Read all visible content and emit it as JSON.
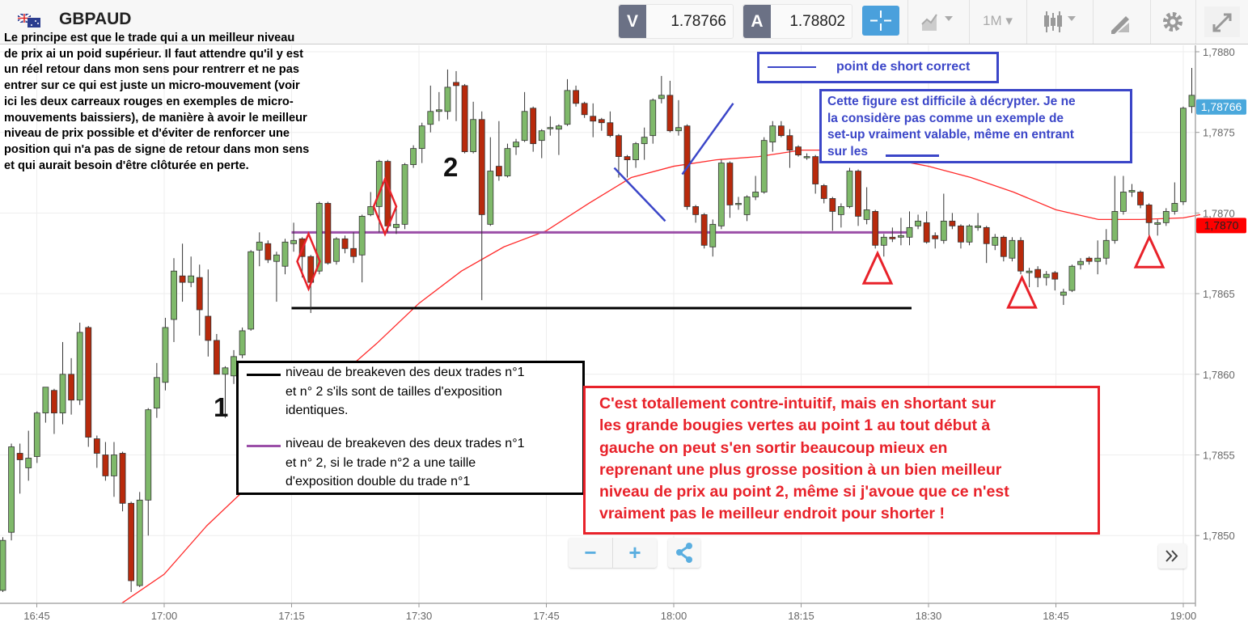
{
  "header": {
    "symbol": "GBPAUD",
    "flag_icon": "gb-au-flag-icon",
    "sell": {
      "label": "V",
      "price": "1.78766"
    },
    "buy": {
      "label": "A",
      "price": "1.78802"
    },
    "timeframe": "1M",
    "icons": [
      "crosshair-icon",
      "chart-type-icon",
      "timeframe-dropdown",
      "candles-icon",
      "draw-icon",
      "gear-icon",
      "fullscreen-icon"
    ]
  },
  "annotations": {
    "intro_lines": [
      "Le principe est que le trade qui a un meilleur niveau",
      "de prix ai un poid supérieur. Il faut attendre qu'il y est",
      "un réel retour dans mon sens pour rentrerr et ne pas",
      "entrer sur ce qui est juste un micro-mouvement (voir",
      "ici les deux carreaux rouges en exemples de micro-",
      "mouvements baissiers), de manière à avoir le meilleur",
      "niveau de prix possible et d'éviter de renforcer une",
      "position qui n'a pas de signe de retour dans mon sens",
      "et qui aurait besoin d'être clôturée en perte."
    ],
    "point1": "1",
    "point2": "2",
    "blue_legend": "point de short correct",
    "blue_box": "Cette figure est difficile à décrypter. Je ne\nla considère pas comme un exemple de\nset-up vraiment valable, même en entrant\nsur les",
    "black_legend": {
      "black_line": "niveau de breakeven des deux trades n°1\net n° 2 s'ils sont de tailles d'exposition\nidentiques.",
      "purple_line": "niveau de breakeven des deux trades n°1\net n° 2, si le trade n°2 a une taille\nd'exposition double du trade n°1"
    },
    "red_box": "C'est totallement contre-intuitif, mais en shortant sur\nles grande bougies vertes au point 1 au tout début à\ngauche on peut s'en sortir beaucoup mieux en\nreprenant une plus grosse position à un bien meilleur\nniveau de prix au point 2, même si j'avoue que ce n'est\nvraiment pas le meilleur endroit pour shorter !",
    "colors": {
      "blue": "#3b46c8",
      "red": "#e8222a",
      "purple": "#9b4fa8",
      "black": "#000000"
    }
  },
  "controls": {
    "zoom_out": "−",
    "zoom_in": "+",
    "share_icon": "share-icon",
    "scroll_icon": "double-chevron-right-icon"
  },
  "chart_data": {
    "type": "candlestick",
    "symbol": "GBPAUD",
    "interval": "1M",
    "time_range": [
      "16:41",
      "19:01"
    ],
    "ylim": [
      1.78466,
      1.78815
    ],
    "y_ticks": [
      "1,7850",
      "1,7855",
      "1,7860",
      "1,7865",
      "1,7870",
      "1,7875",
      "1,7880"
    ],
    "y_tick_values": [
      1.785,
      1.7855,
      1.786,
      1.7865,
      1.787,
      1.7875,
      1.788
    ],
    "x_ticks": [
      "16:45",
      "17:00",
      "17:15",
      "17:30",
      "17:45",
      "18:00",
      "18:15",
      "18:30",
      "18:45",
      "19:00"
    ],
    "grid": true,
    "last_price_label": "1,78766",
    "ma_price_label": "1,7870",
    "colors": {
      "up": "#7fb96a",
      "down": "#b82a0c",
      "ma": "#ff2a2a",
      "last_price": "#4aa8dc",
      "ma_label": "#ff0000"
    },
    "candle_fields": [
      "open",
      "high",
      "low",
      "close"
    ],
    "candles": [
      [
        1.78466,
        1.78499,
        1.78465,
        1.78497
      ],
      [
        1.78502,
        1.78557,
        1.78497,
        1.78555
      ],
      [
        1.78551,
        1.78557,
        1.78526,
        1.78547
      ],
      [
        1.78542,
        1.78565,
        1.78534,
        1.78548
      ],
      [
        1.78549,
        1.78577,
        1.78545,
        1.78576
      ],
      [
        1.78576,
        1.78592,
        1.7857,
        1.78592
      ],
      [
        1.7859,
        1.78591,
        1.78563,
        1.78576
      ],
      [
        1.78576,
        1.7862,
        1.78569,
        1.786
      ],
      [
        1.786,
        1.7861,
        1.78575,
        1.78584
      ],
      [
        1.78584,
        1.78632,
        1.78581,
        1.78626
      ],
      [
        1.78629,
        1.7863,
        1.78555,
        1.78561
      ],
      [
        1.7856,
        1.78562,
        1.78542,
        1.78551
      ],
      [
        1.7855,
        1.78558,
        1.78534,
        1.78537
      ],
      [
        1.78537,
        1.78558,
        1.78524,
        1.7855
      ],
      [
        1.78551,
        1.78552,
        1.78515,
        1.7852
      ],
      [
        1.7852,
        1.78521,
        1.78465,
        1.78472
      ],
      [
        1.78469,
        1.78527,
        1.78468,
        1.78522
      ],
      [
        1.78522,
        1.78579,
        1.785,
        1.78578
      ],
      [
        1.78579,
        1.78607,
        1.78573,
        1.78598
      ],
      [
        1.78595,
        1.78635,
        1.7859,
        1.78629
      ],
      [
        1.78634,
        1.78672,
        1.7862,
        1.78664
      ],
      [
        1.78661,
        1.78681,
        1.78645,
        1.78657
      ],
      [
        1.78657,
        1.78673,
        1.78654,
        1.78661
      ],
      [
        1.7866,
        1.78668,
        1.78624,
        1.7864
      ],
      [
        1.78636,
        1.78665,
        1.78611,
        1.78621
      ],
      [
        1.78621,
        1.78625,
        1.786,
        1.786
      ],
      [
        1.786,
        1.78605,
        1.78573,
        1.78604
      ],
      [
        1.78599,
        1.78615,
        1.78594,
        1.78611
      ],
      [
        1.78612,
        1.78629,
        1.7861,
        1.78627
      ],
      [
        1.78628,
        1.78677,
        1.78627,
        1.78676
      ],
      [
        1.78677,
        1.78688,
        1.78667,
        1.78682
      ],
      [
        1.78681,
        1.78683,
        1.78669,
        1.78671
      ],
      [
        1.7867,
        1.78676,
        1.78645,
        1.78674
      ],
      [
        1.78667,
        1.78684,
        1.78662,
        1.78682
      ],
      [
        1.78681,
        1.78694,
        1.78676,
        1.78683
      ],
      [
        1.78684,
        1.78685,
        1.7866,
        1.78673
      ],
      [
        1.78673,
        1.78674,
        1.78638,
        1.78657
      ],
      [
        1.78664,
        1.78707,
        1.78662,
        1.78706
      ],
      [
        1.78706,
        1.78707,
        1.78668,
        1.78669
      ],
      [
        1.7867,
        1.78685,
        1.78668,
        1.78684
      ],
      [
        1.78684,
        1.78686,
        1.78675,
        1.78678
      ],
      [
        1.78678,
        1.78688,
        1.78669,
        1.78673
      ],
      [
        1.78674,
        1.78699,
        1.78657,
        1.78698
      ],
      [
        1.78699,
        1.78713,
        1.78698,
        1.78704
      ],
      [
        1.78704,
        1.78733,
        1.78688,
        1.78732
      ],
      [
        1.78732,
        1.78733,
        1.78688,
        1.78692
      ],
      [
        1.78691,
        1.78705,
        1.78687,
        1.78693
      ],
      [
        1.78693,
        1.78731,
        1.7869,
        1.7873
      ],
      [
        1.7873,
        1.78742,
        1.78728,
        1.7874
      ],
      [
        1.7874,
        1.78756,
        1.78731,
        1.78754
      ],
      [
        1.78755,
        1.78779,
        1.7875,
        1.78763
      ],
      [
        1.78763,
        1.78775,
        1.78757,
        1.78764
      ],
      [
        1.78763,
        1.78789,
        1.78758,
        1.78778
      ],
      [
        1.78781,
        1.78788,
        1.78757,
        1.78779
      ],
      [
        1.78779,
        1.7878,
        1.78737,
        1.78738
      ],
      [
        1.78738,
        1.78769,
        1.78737,
        1.78758
      ],
      [
        1.78758,
        1.78763,
        1.78646,
        1.78699
      ],
      [
        1.78693,
        1.78747,
        1.78692,
        1.78726
      ],
      [
        1.78729,
        1.78757,
        1.7872,
        1.78723
      ],
      [
        1.78723,
        1.78743,
        1.78722,
        1.7874
      ],
      [
        1.78741,
        1.78746,
        1.78736,
        1.78744
      ],
      [
        1.78745,
        1.78775,
        1.78744,
        1.78763
      ],
      [
        1.78765,
        1.78766,
        1.78738,
        1.78743
      ],
      [
        1.78745,
        1.78752,
        1.78734,
        1.78751
      ],
      [
        1.78753,
        1.7876,
        1.78748,
        1.78753
      ],
      [
        1.78752,
        1.78755,
        1.78736,
        1.78754
      ],
      [
        1.78755,
        1.78783,
        1.78754,
        1.78776
      ],
      [
        1.78776,
        1.78779,
        1.78766,
        1.78768
      ],
      [
        1.78768,
        1.78769,
        1.78759,
        1.78761
      ],
      [
        1.7876,
        1.78768,
        1.78747,
        1.78757
      ],
      [
        1.78758,
        1.78759,
        1.78751,
        1.78756
      ],
      [
        1.78756,
        1.78763,
        1.78747,
        1.78748
      ],
      [
        1.78748,
        1.78749,
        1.78722,
        1.78735
      ],
      [
        1.78735,
        1.78736,
        1.78722,
        1.78733
      ],
      [
        1.78733,
        1.78744,
        1.78728,
        1.78743
      ],
      [
        1.78743,
        1.78753,
        1.78733,
        1.78747
      ],
      [
        1.78748,
        1.78771,
        1.78743,
        1.7877
      ],
      [
        1.78771,
        1.78785,
        1.78768,
        1.78773
      ],
      [
        1.78773,
        1.78782,
        1.7875,
        1.78751
      ],
      [
        1.78751,
        1.7877,
        1.78748,
        1.78753
      ],
      [
        1.78754,
        1.78755,
        1.78702,
        1.78704
      ],
      [
        1.78704,
        1.78705,
        1.78694,
        1.78699
      ],
      [
        1.78699,
        1.787,
        1.78678,
        1.7868
      ],
      [
        1.78679,
        1.78696,
        1.78673,
        1.78693
      ],
      [
        1.78692,
        1.78733,
        1.7869,
        1.78731
      ],
      [
        1.78731,
        1.78732,
        1.78697,
        1.78705
      ],
      [
        1.78706,
        1.7871,
        1.78702,
        1.78706
      ],
      [
        1.78699,
        1.78711,
        1.78695,
        1.7871
      ],
      [
        1.7871,
        1.78723,
        1.78708,
        1.78713
      ],
      [
        1.78713,
        1.78747,
        1.78712,
        1.78745
      ],
      [
        1.78744,
        1.78757,
        1.78738,
        1.78754
      ],
      [
        1.78754,
        1.78757,
        1.78747,
        1.78748
      ],
      [
        1.78748,
        1.78752,
        1.78728,
        1.78739
      ],
      [
        1.78741,
        1.78742,
        1.78735,
        1.78736
      ],
      [
        1.78735,
        1.78737,
        1.78733,
        1.78735
      ],
      [
        1.78735,
        1.78736,
        1.78712,
        1.78718
      ],
      [
        1.78717,
        1.78718,
        1.78706,
        1.78709
      ],
      [
        1.78709,
        1.7871,
        1.78689,
        1.78701
      ],
      [
        1.78699,
        1.78706,
        1.78691,
        1.78704
      ],
      [
        1.78704,
        1.78728,
        1.78703,
        1.78726
      ],
      [
        1.78726,
        1.78727,
        1.78692,
        1.78698
      ],
      [
        1.78696,
        1.78716,
        1.78693,
        1.78702
      ],
      [
        1.78701,
        1.78702,
        1.78678,
        1.7868
      ],
      [
        1.7868,
        1.78687,
        1.78673,
        1.78685
      ],
      [
        1.78685,
        1.78691,
        1.78682,
        1.78684
      ],
      [
        1.78685,
        1.78697,
        1.7868,
        1.78686
      ],
      [
        1.78685,
        1.78701,
        1.7868,
        1.78691
      ],
      [
        1.78692,
        1.78699,
        1.7869,
        1.78695
      ],
      [
        1.78694,
        1.78701,
        1.78681,
        1.78682
      ],
      [
        1.78686,
        1.78688,
        1.78678,
        1.78684
      ],
      [
        1.78683,
        1.78712,
        1.78681,
        1.78695
      ],
      [
        1.78695,
        1.787,
        1.7869,
        1.78692
      ],
      [
        1.78692,
        1.78693,
        1.78678,
        1.78682
      ],
      [
        1.78682,
        1.78693,
        1.7868,
        1.78692
      ],
      [
        1.78691,
        1.787,
        1.78689,
        1.78692
      ],
      [
        1.78691,
        1.78692,
        1.78669,
        1.78681
      ],
      [
        1.7868,
        1.78687,
        1.78677,
        1.78685
      ],
      [
        1.78685,
        1.78686,
        1.7867,
        1.78673
      ],
      [
        1.78672,
        1.78685,
        1.7867,
        1.78683
      ],
      [
        1.78683,
        1.78685,
        1.78662,
        1.78664
      ],
      [
        1.78663,
        1.78666,
        1.78654,
        1.78664
      ],
      [
        1.78665,
        1.78667,
        1.78654,
        1.7866
      ],
      [
        1.7866,
        1.78664,
        1.78655,
        1.78662
      ],
      [
        1.78663,
        1.78664,
        1.78652,
        1.78659
      ],
      [
        1.78649,
        1.78653,
        1.78643,
        1.78651
      ],
      [
        1.78652,
        1.78668,
        1.78651,
        1.78667
      ],
      [
        1.78668,
        1.78672,
        1.78665,
        1.7867
      ],
      [
        1.78672,
        1.78673,
        1.78668,
        1.7867
      ],
      [
        1.7867,
        1.78683,
        1.78662,
        1.78672
      ],
      [
        1.78672,
        1.7869,
        1.78668,
        1.78683
      ],
      [
        1.78683,
        1.78723,
        1.78681,
        1.78701
      ],
      [
        1.78701,
        1.78723,
        1.78699,
        1.78713
      ],
      [
        1.78713,
        1.78718,
        1.7871,
        1.78714
      ],
      [
        1.78713,
        1.78714,
        1.78703,
        1.78705
      ],
      [
        1.78705,
        1.78706,
        1.78686,
        1.78694
      ],
      [
        1.78693,
        1.78696,
        1.78686,
        1.78694
      ],
      [
        1.78694,
        1.78703,
        1.78692,
        1.78701
      ],
      [
        1.78701,
        1.78719,
        1.78699,
        1.78706
      ],
      [
        1.78707,
        1.78766,
        1.78705,
        1.78765
      ],
      [
        1.78766,
        1.7879,
        1.78762,
        1.78773
      ]
    ],
    "moving_average": [
      {
        "t": "16:55",
        "v": 1.78458
      },
      {
        "t": "17:00",
        "v": 1.78476
      },
      {
        "t": "17:05",
        "v": 1.78506
      },
      {
        "t": "17:10",
        "v": 1.78531
      },
      {
        "t": "17:15",
        "v": 1.78566
      },
      {
        "t": "17:20",
        "v": 1.78596
      },
      {
        "t": "17:25",
        "v": 1.78619
      },
      {
        "t": "17:30",
        "v": 1.78644
      },
      {
        "t": "17:35",
        "v": 1.78664
      },
      {
        "t": "17:40",
        "v": 1.78679
      },
      {
        "t": "17:45",
        "v": 1.78689
      },
      {
        "t": "17:50",
        "v": 1.78706
      },
      {
        "t": "17:55",
        "v": 1.78722
      },
      {
        "t": "18:00",
        "v": 1.78729
      },
      {
        "t": "18:05",
        "v": 1.78733
      },
      {
        "t": "18:10",
        "v": 1.78735
      },
      {
        "t": "18:15",
        "v": 1.78739
      },
      {
        "t": "18:20",
        "v": 1.78739
      },
      {
        "t": "18:25",
        "v": 1.78734
      },
      {
        "t": "18:30",
        "v": 1.78729
      },
      {
        "t": "18:35",
        "v": 1.78722
      },
      {
        "t": "18:40",
        "v": 1.78713
      },
      {
        "t": "18:45",
        "v": 1.78702
      },
      {
        "t": "18:50",
        "v": 1.78696
      },
      {
        "t": "18:55",
        "v": 1.78696
      },
      {
        "t": "19:00",
        "v": 1.78697
      },
      {
        "t": "19:02",
        "v": 1.78699
      }
    ],
    "levels": {
      "black_breakeven": {
        "price": 1.78641,
        "from": "17:15",
        "to": "18:28"
      },
      "purple_breakeven": {
        "price": 1.78688,
        "from": "17:15",
        "to": "18:28"
      }
    },
    "short_lines": [
      {
        "from": {
          "t": "17:53",
          "v": 1.78728
        },
        "to": {
          "t": "17:59",
          "v": 1.78695
        }
      },
      {
        "from": {
          "t": "18:01",
          "v": 1.78724
        },
        "to": {
          "t": "18:07",
          "v": 1.78768
        }
      }
    ],
    "micro_move_diamonds": [
      {
        "t": "17:17",
        "v": 1.7867
      },
      {
        "t": "17:26",
        "v": 1.78704
      }
    ],
    "triangles": [
      {
        "t": "18:24",
        "v": 1.78675
      },
      {
        "t": "18:41",
        "v": 1.7866
      },
      {
        "t": "18:56",
        "v": 1.78685
      }
    ]
  }
}
